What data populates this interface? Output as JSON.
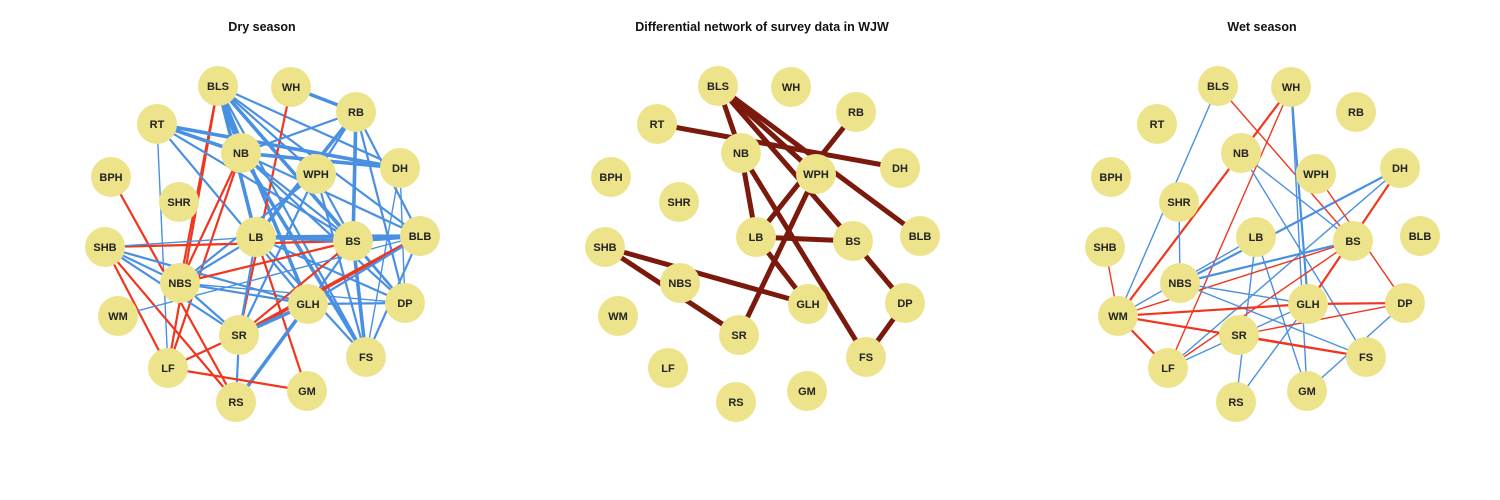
{
  "colors": {
    "node_fill": "#EDE38B",
    "positive_edge": "#4A90E2",
    "negative_edge": "#F0361E",
    "differential_edge": "#7B1A0C",
    "label": "#222222",
    "title": "#111111"
  },
  "nodes": [
    "BLS",
    "WH",
    "RT",
    "RB",
    "NB",
    "DH",
    "BPH",
    "WPH",
    "SHR",
    "SHB",
    "LB",
    "BS",
    "BLB",
    "NBS",
    "GLH",
    "DP",
    "WM",
    "SR",
    "LF",
    "FS",
    "GM",
    "RS"
  ],
  "panels": [
    {
      "key": "dry",
      "title": "Dry season",
      "edges": [
        {
          "from": "BLS",
          "to": "NB",
          "sign": "pos",
          "strength": "strong"
        },
        {
          "from": "BLS",
          "to": "LB",
          "sign": "pos",
          "strength": "strong"
        },
        {
          "from": "BLS",
          "to": "BS",
          "sign": "pos",
          "strength": "strong"
        },
        {
          "from": "BLS",
          "to": "GLH",
          "sign": "pos",
          "strength": "strong"
        },
        {
          "from": "BLS",
          "to": "DP",
          "sign": "pos",
          "strength": "medium"
        },
        {
          "from": "BLS",
          "to": "BLB",
          "sign": "pos",
          "strength": "medium"
        },
        {
          "from": "BLS",
          "to": "FS",
          "sign": "pos",
          "strength": "medium"
        },
        {
          "from": "BLS",
          "to": "DH",
          "sign": "pos",
          "strength": "medium"
        },
        {
          "from": "BLS",
          "to": "WPH",
          "sign": "pos",
          "strength": "medium"
        },
        {
          "from": "BLS",
          "to": "NBS",
          "sign": "neg",
          "strength": "medium"
        },
        {
          "from": "BLS",
          "to": "LF",
          "sign": "neg",
          "strength": "medium"
        },
        {
          "from": "WH",
          "to": "RB",
          "sign": "pos",
          "strength": "strong"
        },
        {
          "from": "WH",
          "to": "SR",
          "sign": "neg",
          "strength": "medium"
        },
        {
          "from": "RT",
          "to": "NB",
          "sign": "pos",
          "strength": "strong"
        },
        {
          "from": "RT",
          "to": "DH",
          "sign": "pos",
          "strength": "strong"
        },
        {
          "from": "RT",
          "to": "BS",
          "sign": "pos",
          "strength": "medium"
        },
        {
          "from": "RT",
          "to": "GLH",
          "sign": "pos",
          "strength": "medium"
        },
        {
          "from": "RT",
          "to": "LF",
          "sign": "pos",
          "strength": "thin"
        },
        {
          "from": "RB",
          "to": "NB",
          "sign": "pos",
          "strength": "medium"
        },
        {
          "from": "RB",
          "to": "LB",
          "sign": "pos",
          "strength": "strong"
        },
        {
          "from": "RB",
          "to": "BS",
          "sign": "pos",
          "strength": "strong"
        },
        {
          "from": "RB",
          "to": "BLB",
          "sign": "pos",
          "strength": "medium"
        },
        {
          "from": "RB",
          "to": "DP",
          "sign": "pos",
          "strength": "medium"
        },
        {
          "from": "RB",
          "to": "WPH",
          "sign": "pos",
          "strength": "medium"
        },
        {
          "from": "NB",
          "to": "DH",
          "sign": "pos",
          "strength": "strong"
        },
        {
          "from": "NB",
          "to": "BS",
          "sign": "pos",
          "strength": "medium"
        },
        {
          "from": "NB",
          "to": "BLB",
          "sign": "pos",
          "strength": "medium"
        },
        {
          "from": "NB",
          "to": "DP",
          "sign": "pos",
          "strength": "medium"
        },
        {
          "from": "NB",
          "to": "FS",
          "sign": "pos",
          "strength": "strong"
        },
        {
          "from": "NB",
          "to": "NBS",
          "sign": "neg",
          "strength": "medium"
        },
        {
          "from": "NB",
          "to": "LF",
          "sign": "neg",
          "strength": "medium"
        },
        {
          "from": "DH",
          "to": "DP",
          "sign": "pos",
          "strength": "thin"
        },
        {
          "from": "DH",
          "to": "FS",
          "sign": "pos",
          "strength": "thin"
        },
        {
          "from": "BPH",
          "to": "RS",
          "sign": "neg",
          "strength": "medium"
        },
        {
          "from": "WPH",
          "to": "NBS",
          "sign": "pos",
          "strength": "medium"
        },
        {
          "from": "WPH",
          "to": "SR",
          "sign": "pos",
          "strength": "medium"
        },
        {
          "from": "WPH",
          "to": "FS",
          "sign": "pos",
          "strength": "medium"
        },
        {
          "from": "WPH",
          "to": "BS",
          "sign": "pos",
          "strength": "medium"
        },
        {
          "from": "SHB",
          "to": "BS",
          "sign": "neg",
          "strength": "medium"
        },
        {
          "from": "SHB",
          "to": "LB",
          "sign": "pos",
          "strength": "thin"
        },
        {
          "from": "SHB",
          "to": "NBS",
          "sign": "pos",
          "strength": "medium"
        },
        {
          "from": "SHB",
          "to": "SR",
          "sign": "pos",
          "strength": "medium"
        },
        {
          "from": "SHB",
          "to": "LF",
          "sign": "neg",
          "strength": "medium"
        },
        {
          "from": "SHB",
          "to": "GLH",
          "sign": "pos",
          "strength": "medium"
        },
        {
          "from": "SHB",
          "to": "RS",
          "sign": "neg",
          "strength": "medium"
        },
        {
          "from": "LB",
          "to": "BS",
          "sign": "pos",
          "strength": "strong"
        },
        {
          "from": "LB",
          "to": "BLB",
          "sign": "pos",
          "strength": "strong"
        },
        {
          "from": "LB",
          "to": "GM",
          "sign": "neg",
          "strength": "medium"
        },
        {
          "from": "LB",
          "to": "SR",
          "sign": "pos",
          "strength": "medium"
        },
        {
          "from": "LB",
          "to": "NBS",
          "sign": "pos",
          "strength": "medium"
        },
        {
          "from": "LB",
          "to": "DP",
          "sign": "pos",
          "strength": "medium"
        },
        {
          "from": "LB",
          "to": "FS",
          "sign": "pos",
          "strength": "medium"
        },
        {
          "from": "BS",
          "to": "BLB",
          "sign": "pos",
          "strength": "strong"
        },
        {
          "from": "BS",
          "to": "NBS",
          "sign": "neg",
          "strength": "medium"
        },
        {
          "from": "BS",
          "to": "SR",
          "sign": "neg",
          "strength": "medium"
        },
        {
          "from": "BS",
          "to": "GLH",
          "sign": "pos",
          "strength": "medium"
        },
        {
          "from": "BS",
          "to": "DP",
          "sign": "pos",
          "strength": "medium"
        },
        {
          "from": "BS",
          "to": "FS",
          "sign": "pos",
          "strength": "strong"
        },
        {
          "from": "BLB",
          "to": "SR",
          "sign": "neg",
          "strength": "strong"
        },
        {
          "from": "BLB",
          "to": "GLH",
          "sign": "pos",
          "strength": "medium"
        },
        {
          "from": "BLB",
          "to": "FS",
          "sign": "pos",
          "strength": "medium"
        },
        {
          "from": "BLB",
          "to": "WM",
          "sign": "pos",
          "strength": "thin"
        },
        {
          "from": "NBS",
          "to": "GLH",
          "sign": "pos",
          "strength": "medium"
        },
        {
          "from": "NBS",
          "to": "SR",
          "sign": "pos",
          "strength": "medium"
        },
        {
          "from": "NBS",
          "to": "DP",
          "sign": "pos",
          "strength": "thin"
        },
        {
          "from": "GLH",
          "to": "SR",
          "sign": "pos",
          "strength": "strong"
        },
        {
          "from": "GLH",
          "to": "RS",
          "sign": "pos",
          "strength": "strong"
        },
        {
          "from": "GLH",
          "to": "DP",
          "sign": "pos",
          "strength": "medium"
        },
        {
          "from": "SR",
          "to": "LF",
          "sign": "neg",
          "strength": "medium"
        },
        {
          "from": "SR",
          "to": "RS",
          "sign": "pos",
          "strength": "medium"
        },
        {
          "from": "LF",
          "to": "GM",
          "sign": "neg",
          "strength": "medium"
        }
      ]
    },
    {
      "key": "diff",
      "title": "Differential network of survey data in WJW",
      "edges": [
        {
          "from": "BLS",
          "to": "NB",
          "sign": "diff",
          "strength": "strong"
        },
        {
          "from": "BLS",
          "to": "WPH",
          "sign": "diff",
          "strength": "strong"
        },
        {
          "from": "BLS",
          "to": "BS",
          "sign": "diff",
          "strength": "strong"
        },
        {
          "from": "BLS",
          "to": "BLB",
          "sign": "diff",
          "strength": "strong"
        },
        {
          "from": "RT",
          "to": "DH",
          "sign": "diff",
          "strength": "strong"
        },
        {
          "from": "RB",
          "to": "LB",
          "sign": "diff",
          "strength": "strong"
        },
        {
          "from": "NB",
          "to": "LB",
          "sign": "diff",
          "strength": "strong"
        },
        {
          "from": "NB",
          "to": "FS",
          "sign": "diff",
          "strength": "strong"
        },
        {
          "from": "WPH",
          "to": "SR",
          "sign": "diff",
          "strength": "strong"
        },
        {
          "from": "SHB",
          "to": "GLH",
          "sign": "diff",
          "strength": "strong"
        },
        {
          "from": "SHB",
          "to": "SR",
          "sign": "diff",
          "strength": "strong"
        },
        {
          "from": "LB",
          "to": "BS",
          "sign": "diff",
          "strength": "strong"
        },
        {
          "from": "LB",
          "to": "GLH",
          "sign": "diff",
          "strength": "strong"
        },
        {
          "from": "BS",
          "to": "DP",
          "sign": "diff",
          "strength": "strong"
        },
        {
          "from": "DP",
          "to": "FS",
          "sign": "diff",
          "strength": "strong"
        }
      ]
    },
    {
      "key": "wet",
      "title": "Wet season",
      "edges": [
        {
          "from": "BLS",
          "to": "WM",
          "sign": "pos",
          "strength": "thin"
        },
        {
          "from": "BLS",
          "to": "BS",
          "sign": "neg",
          "strength": "thin"
        },
        {
          "from": "WH",
          "to": "NB",
          "sign": "pos",
          "strength": "thin"
        },
        {
          "from": "WH",
          "to": "WM",
          "sign": "neg",
          "strength": "medium"
        },
        {
          "from": "WH",
          "to": "LF",
          "sign": "neg",
          "strength": "thin"
        },
        {
          "from": "WH",
          "to": "GLH",
          "sign": "pos",
          "strength": "medium"
        },
        {
          "from": "WH",
          "to": "GM",
          "sign": "pos",
          "strength": "thin"
        },
        {
          "from": "NB",
          "to": "BS",
          "sign": "pos",
          "strength": "thin"
        },
        {
          "from": "NB",
          "to": "FS",
          "sign": "pos",
          "strength": "thin"
        },
        {
          "from": "DH",
          "to": "NBS",
          "sign": "pos",
          "strength": "medium"
        },
        {
          "from": "DH",
          "to": "GLH",
          "sign": "neg",
          "strength": "medium"
        },
        {
          "from": "DH",
          "to": "LF",
          "sign": "pos",
          "strength": "thin"
        },
        {
          "from": "WPH",
          "to": "DP",
          "sign": "neg",
          "strength": "thin"
        },
        {
          "from": "SHR",
          "to": "NBS",
          "sign": "pos",
          "strength": "thin"
        },
        {
          "from": "SHB",
          "to": "WM",
          "sign": "neg",
          "strength": "thin"
        },
        {
          "from": "LB",
          "to": "WM",
          "sign": "pos",
          "strength": "thin"
        },
        {
          "from": "LB",
          "to": "RS",
          "sign": "pos",
          "strength": "thin"
        },
        {
          "from": "LB",
          "to": "GM",
          "sign": "pos",
          "strength": "thin"
        },
        {
          "from": "BS",
          "to": "NBS",
          "sign": "pos",
          "strength": "medium"
        },
        {
          "from": "BS",
          "to": "WM",
          "sign": "neg",
          "strength": "thin"
        },
        {
          "from": "BS",
          "to": "LF",
          "sign": "neg",
          "strength": "thin"
        },
        {
          "from": "NBS",
          "to": "GLH",
          "sign": "pos",
          "strength": "thin"
        },
        {
          "from": "NBS",
          "to": "FS",
          "sign": "pos",
          "strength": "thin"
        },
        {
          "from": "GLH",
          "to": "WM",
          "sign": "neg",
          "strength": "medium"
        },
        {
          "from": "GLH",
          "to": "DP",
          "sign": "neg",
          "strength": "medium"
        },
        {
          "from": "GLH",
          "to": "RS",
          "sign": "pos",
          "strength": "thin"
        },
        {
          "from": "GLH",
          "to": "LF",
          "sign": "pos",
          "strength": "thin"
        },
        {
          "from": "WM",
          "to": "LF",
          "sign": "neg",
          "strength": "medium"
        },
        {
          "from": "WM",
          "to": "FS",
          "sign": "neg",
          "strength": "medium"
        },
        {
          "from": "SR",
          "to": "FS",
          "sign": "neg",
          "strength": "thin"
        },
        {
          "from": "SR",
          "to": "DP",
          "sign": "neg",
          "strength": "thin"
        },
        {
          "from": "DP",
          "to": "GM",
          "sign": "pos",
          "strength": "thin"
        }
      ]
    }
  ]
}
